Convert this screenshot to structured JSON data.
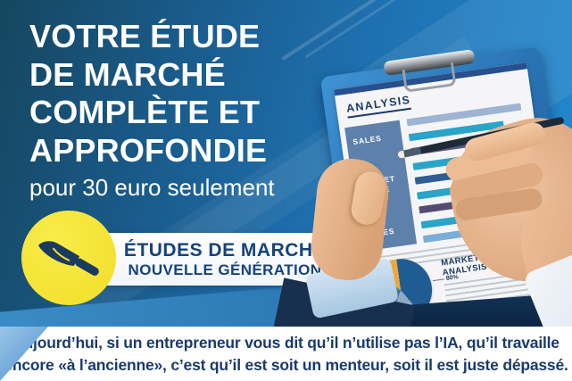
{
  "hero": {
    "headline_lines": [
      "VOTRE ÉTUDE",
      "DE MARCHÉ",
      "COMPLÈTE ET",
      "APPROFONDIE"
    ],
    "subheadline": "pour 30 euro seulement"
  },
  "badge": {
    "icon": "knife-icon",
    "accent_color": "#f2de27",
    "icon_color": "#1b3a60"
  },
  "ribbon": {
    "line1": "ÉTUDES DE MARCHÉ",
    "line2": "NOUVELLE GÉNÉRATION",
    "text_color": "#16437a"
  },
  "clipboard": {
    "title": "ANALYSIS",
    "side_labels": [
      "SALES",
      "MARKET SHARE",
      "SALES"
    ],
    "pie": {
      "title": "MARKET ANALYSIS",
      "callout": "80%"
    }
  },
  "chart_data": [
    {
      "type": "bar",
      "orientation": "horizontal",
      "title": "ANALYSIS",
      "row_group_labels": [
        "SALES",
        "MARKET SHARE",
        "SALES"
      ],
      "values_pct": [
        96,
        80,
        84,
        64,
        77,
        90,
        87,
        57,
        44
      ],
      "colors": [
        "#9db4d2",
        "#2aa4c8",
        "#5a5680",
        "#2aa4c8",
        "#2d5e93",
        "#2aa4c8",
        "#514e70",
        "#2aa4c8",
        "#79aed8"
      ],
      "xlim": [
        0,
        100
      ],
      "grid": false
    },
    {
      "type": "pie",
      "title": "MARKET ANALYSIS",
      "callout_label": "80%",
      "slices": [
        {
          "value": 41,
          "color": "#1f5c94"
        },
        {
          "value": 17,
          "color": "#92a9c1"
        },
        {
          "value": 17,
          "color": "#44719f"
        },
        {
          "value": 12,
          "color": "#3a8f99"
        },
        {
          "value": 13,
          "color": "#f0a63c"
        }
      ]
    }
  ],
  "footer": {
    "line1": "Aujourd’hui, si un entrepreneur vous dit qu’il n’utilise pas l’IA, qu’il travaille",
    "line2": "encore «à l’ancienne», c’est qu’il est soit un menteur, soit il est juste dépassé.",
    "text_color": "#1a3a6e"
  }
}
